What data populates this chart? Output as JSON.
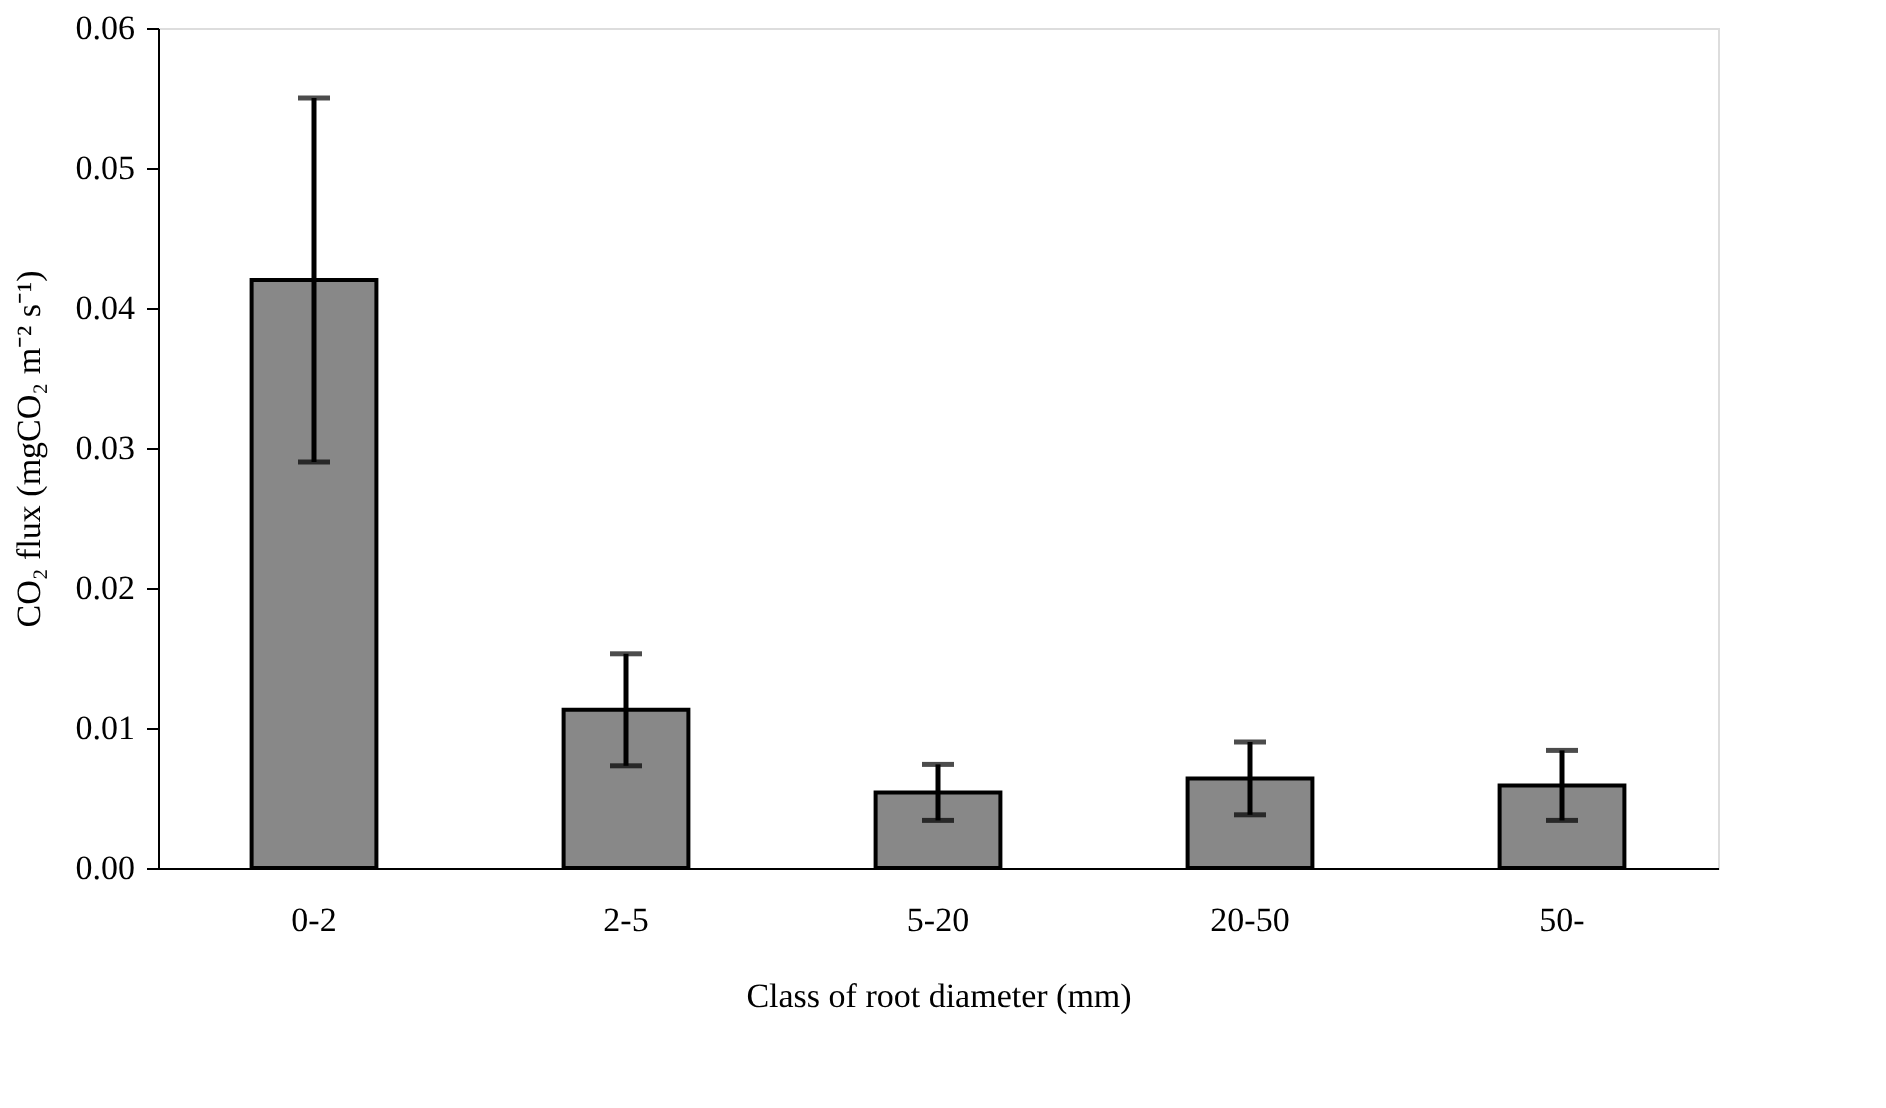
{
  "chart_data": {
    "type": "bar",
    "xlabel": "Class of root diameter (mm)",
    "ylabel": "CO₂ flux (mgCO₂ m⁻² s⁻¹)",
    "categories": [
      "0-2",
      "2-5",
      "5-20",
      "20-50",
      "50-"
    ],
    "values": [
      0.042,
      0.0113,
      0.0054,
      0.0064,
      0.0059
    ],
    "errors": [
      0.013,
      0.004,
      0.002,
      0.0026,
      0.0025
    ],
    "color": "#888888",
    "ylim": [
      0,
      0.06
    ],
    "yticks": [
      {
        "value": 0,
        "label": "0.00"
      },
      0.01,
      0.02,
      0.03,
      0.04,
      0.05,
      0.06
    ],
    "grid": false
  }
}
